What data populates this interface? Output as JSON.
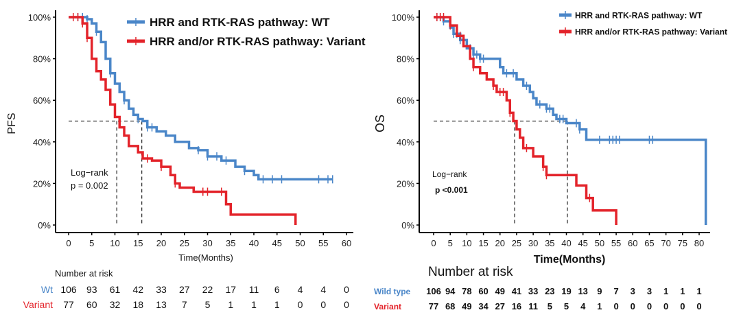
{
  "colors": {
    "wt": "#4a86c8",
    "variant": "#e3232a",
    "axis": "#000000"
  },
  "chart_data": [
    {
      "type": "line",
      "subtype": "kaplan-meier",
      "ylabel": "PFS",
      "xlabel": "Time(Months)",
      "xlim": [
        0,
        60
      ],
      "xticks": [
        "0",
        "5",
        "10",
        "15",
        "20",
        "25",
        "30",
        "35",
        "40",
        "45",
        "50",
        "55",
        "60"
      ],
      "ylim": [
        0,
        1
      ],
      "yticks": [
        "0%",
        "20%",
        "40%",
        "60%",
        "80%",
        "100%"
      ],
      "legend": [
        "HRR and RTK-RAS pathway: WT",
        "HRR and/or RTK-RAS pathway: Variant"
      ],
      "legend_position": "top-right",
      "annotation": [
        "Log−rank",
        "p = 0.002"
      ],
      "medians": [
        15.8,
        10.4
      ],
      "series": [
        {
          "name": "HRR and RTK-RAS pathway: WT",
          "steps": [
            [
              0,
              1
            ],
            [
              4,
              0.99
            ],
            [
              5,
              0.97
            ],
            [
              6,
              0.93
            ],
            [
              7,
              0.88
            ],
            [
              8,
              0.8
            ],
            [
              9,
              0.73
            ],
            [
              10,
              0.68
            ],
            [
              11,
              0.64
            ],
            [
              12,
              0.6
            ],
            [
              13,
              0.56
            ],
            [
              14,
              0.53
            ],
            [
              15,
              0.51
            ],
            [
              16,
              0.5
            ],
            [
              17,
              0.47
            ],
            [
              19,
              0.45
            ],
            [
              21,
              0.43
            ],
            [
              23,
              0.4
            ],
            [
              26,
              0.37
            ],
            [
              28,
              0.36
            ],
            [
              30,
              0.33
            ],
            [
              33,
              0.31
            ],
            [
              36,
              0.28
            ],
            [
              38,
              0.26
            ],
            [
              40,
              0.24
            ],
            [
              41,
              0.22
            ],
            [
              57,
              0.22
            ]
          ],
          "censored": [
            2,
            3,
            4,
            6,
            9,
            12,
            15,
            17,
            18,
            28,
            30,
            32,
            34,
            38,
            42,
            44,
            46,
            54,
            56,
            57
          ]
        },
        {
          "name": "HRR and/or RTK-RAS pathway: Variant",
          "steps": [
            [
              0,
              1
            ],
            [
              3,
              0.97
            ],
            [
              4,
              0.9
            ],
            [
              5,
              0.8
            ],
            [
              6,
              0.74
            ],
            [
              7,
              0.7
            ],
            [
              8,
              0.65
            ],
            [
              9,
              0.58
            ],
            [
              10,
              0.52
            ],
            [
              11,
              0.47
            ],
            [
              12,
              0.43
            ],
            [
              13,
              0.38
            ],
            [
              15,
              0.35
            ],
            [
              16,
              0.32
            ],
            [
              18,
              0.31
            ],
            [
              20,
              0.28
            ],
            [
              22,
              0.24
            ],
            [
              23,
              0.2
            ],
            [
              24,
              0.18
            ],
            [
              27,
              0.16
            ],
            [
              34,
              0.1
            ],
            [
              35,
              0.05
            ],
            [
              49,
              0.05
            ],
            [
              49,
              0
            ]
          ],
          "censored": [
            1,
            2,
            3,
            4,
            17,
            20,
            23,
            29,
            30,
            33
          ]
        }
      ],
      "risk_table": {
        "title": "Number at risk",
        "rows": [
          {
            "label": "Wt",
            "values": [
              "106",
              "93",
              "61",
              "42",
              "33",
              "27",
              "22",
              "17",
              "11",
              "6",
              "4",
              "4",
              "0"
            ]
          },
          {
            "label": "Variant",
            "values": [
              "77",
              "60",
              "32",
              "18",
              "13",
              "7",
              "5",
              "1",
              "1",
              "1",
              "0",
              "0",
              "0"
            ]
          }
        ]
      }
    },
    {
      "type": "line",
      "subtype": "kaplan-meier",
      "ylabel": "OS",
      "xlabel": "Time(Months)",
      "xlim": [
        0,
        80
      ],
      "xticks": [
        "0",
        "5",
        "10",
        "15",
        "20",
        "25",
        "30",
        "35",
        "40",
        "45",
        "50",
        "55",
        "60",
        "65",
        "70",
        "75",
        "80"
      ],
      "ylim": [
        0,
        1
      ],
      "yticks": [
        "0%",
        "20%",
        "40%",
        "60%",
        "80%",
        "100%"
      ],
      "legend": [
        "HRR and RTK-RAS pathway: WT",
        "HRR and/or RTK-RAS pathway: Variant"
      ],
      "legend_position": "top-right",
      "annotation": [
        "Log−rank",
        "p <0.001"
      ],
      "medians": [
        40.3,
        24.4
      ],
      "series": [
        {
          "name": "HRR and RTK-RAS pathway: WT",
          "steps": [
            [
              0,
              1
            ],
            [
              3,
              0.98
            ],
            [
              5,
              0.95
            ],
            [
              6,
              0.92
            ],
            [
              8,
              0.89
            ],
            [
              10,
              0.85
            ],
            [
              12,
              0.82
            ],
            [
              14,
              0.8
            ],
            [
              20,
              0.76
            ],
            [
              21,
              0.73
            ],
            [
              25,
              0.7
            ],
            [
              27,
              0.67
            ],
            [
              29,
              0.64
            ],
            [
              30,
              0.61
            ],
            [
              31,
              0.58
            ],
            [
              34,
              0.56
            ],
            [
              36,
              0.53
            ],
            [
              37,
              0.51
            ],
            [
              40,
              0.49
            ],
            [
              44,
              0.46
            ],
            [
              46,
              0.41
            ],
            [
              82,
              0.41
            ],
            [
              82,
              0
            ]
          ],
          "censored": [
            1,
            2,
            3,
            6,
            7,
            8,
            9,
            11,
            12,
            13,
            14,
            15,
            22,
            24,
            28,
            32,
            34,
            35,
            38,
            39,
            43,
            44,
            50,
            53,
            54,
            55,
            56,
            65,
            66
          ]
        },
        {
          "name": "HRR and/or RTK-RAS pathway: Variant",
          "steps": [
            [
              0,
              1
            ],
            [
              5,
              0.96
            ],
            [
              7,
              0.91
            ],
            [
              9,
              0.86
            ],
            [
              11,
              0.8
            ],
            [
              12,
              0.76
            ],
            [
              14,
              0.73
            ],
            [
              16,
              0.7
            ],
            [
              18,
              0.67
            ],
            [
              19,
              0.64
            ],
            [
              22,
              0.6
            ],
            [
              23,
              0.54
            ],
            [
              24,
              0.5
            ],
            [
              25,
              0.46
            ],
            [
              26,
              0.42
            ],
            [
              27,
              0.37
            ],
            [
              30,
              0.33
            ],
            [
              33,
              0.28
            ],
            [
              34,
              0.24
            ],
            [
              43,
              0.19
            ],
            [
              46,
              0.13
            ],
            [
              48,
              0.07
            ],
            [
              55,
              0.07
            ],
            [
              55,
              0
            ]
          ],
          "censored": [
            1,
            2,
            3,
            5,
            8,
            12,
            18,
            20,
            21,
            23,
            28,
            33,
            34,
            47
          ]
        }
      ],
      "risk_table": {
        "title": "Number at risk",
        "rows": [
          {
            "label": "Wild type",
            "values": [
              "106",
              "94",
              "78",
              "60",
              "49",
              "41",
              "33",
              "23",
              "19",
              "13",
              "9",
              "7",
              "3",
              "3",
              "1",
              "1",
              "1"
            ]
          },
          {
            "label": "Variant",
            "values": [
              "77",
              "68",
              "49",
              "34",
              "27",
              "16",
              "11",
              "5",
              "5",
              "4",
              "1",
              "0",
              "0",
              "0",
              "0",
              "0",
              "0"
            ]
          }
        ]
      }
    }
  ]
}
